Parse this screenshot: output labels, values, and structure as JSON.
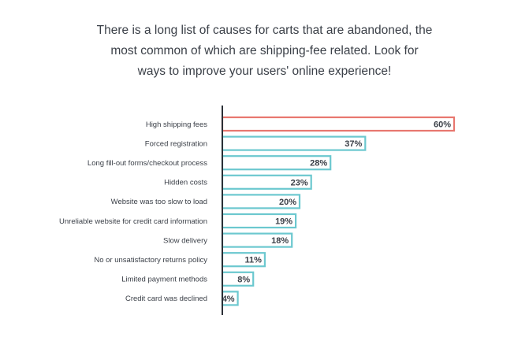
{
  "intro": {
    "line1": "There is a long list of causes for carts that are abandoned, the",
    "line2": "most common of which are shipping-fee related. Look for",
    "line3": "ways to improve your users' online experience!"
  },
  "colors": {
    "highlight": "#e8776f",
    "bar": "#6cc8cf",
    "axis": "#2b2f36",
    "text": "#3a3f47"
  },
  "chart_data": {
    "type": "bar",
    "orientation": "horizontal",
    "categories": [
      "High shipping fees",
      "Forced registration",
      "Long fill-out forms/checkout process",
      "Hidden costs",
      "Website was too slow to load",
      "Unreliable website for credit card information",
      "Slow delivery",
      "No or unsatisfactory returns policy",
      "Limited payment methods",
      "Credit card was declined"
    ],
    "values": [
      60,
      37,
      28,
      23,
      20,
      19,
      18,
      11,
      8,
      4
    ],
    "value_labels": [
      "60%",
      "37%",
      "28%",
      "23%",
      "20%",
      "19%",
      "18%",
      "11%",
      "8%",
      "4%"
    ],
    "highlight_index": 0,
    "xlim": [
      0,
      60
    ],
    "grid": false,
    "legend": false
  }
}
